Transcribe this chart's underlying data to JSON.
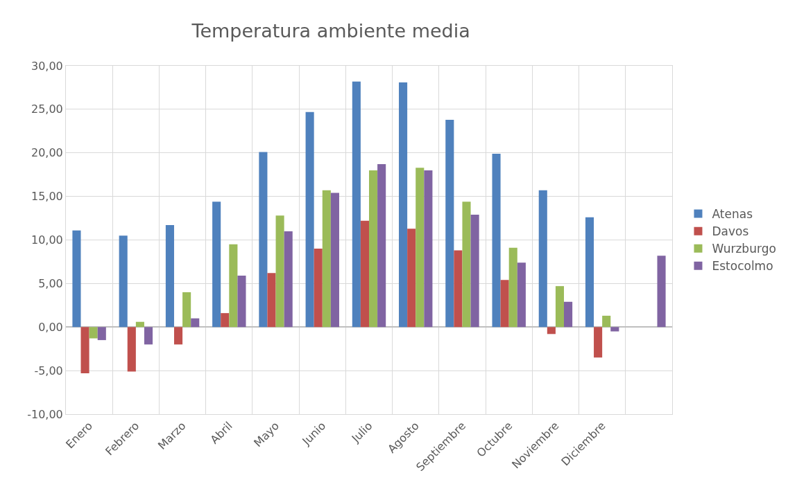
{
  "chart_data": {
    "type": "bar",
    "title": "Temperatura ambiente media",
    "categories": [
      "Enero",
      "Febrero",
      "Marzo",
      "Abril",
      "Mayo",
      "Junio",
      "Julio",
      "Agosto",
      "Septiembre",
      "Octubre",
      "Noviembre",
      "Diciembre",
      null
    ],
    "series": [
      {
        "name": "Atenas",
        "color": "#4f81bd",
        "values": [
          11.1,
          10.5,
          11.7,
          14.4,
          20.1,
          24.7,
          28.2,
          28.1,
          23.8,
          19.9,
          15.7,
          12.6,
          null
        ]
      },
      {
        "name": "Davos",
        "color": "#c0504d",
        "values": [
          -5.3,
          -5.1,
          -2.0,
          1.6,
          6.2,
          9.0,
          12.2,
          11.3,
          8.8,
          5.4,
          -0.8,
          -3.5,
          null
        ]
      },
      {
        "name": "Wurzburgo",
        "color": "#9bbb59",
        "values": [
          -1.3,
          0.6,
          4.0,
          9.5,
          12.8,
          15.7,
          18.0,
          18.3,
          14.4,
          9.1,
          4.7,
          1.3,
          null
        ]
      },
      {
        "name": "Estocolmo",
        "color": "#8064a2",
        "values": [
          -1.5,
          -2.0,
          1.0,
          5.9,
          11.0,
          15.4,
          18.7,
          18.0,
          12.9,
          7.4,
          2.9,
          -0.5,
          8.2
        ]
      }
    ],
    "ylim": [
      -10,
      30
    ],
    "yticks": [
      {
        "value": -10,
        "label": "-10,00"
      },
      {
        "value": -5,
        "label": "-5,00"
      },
      {
        "value": 0,
        "label": "0,00"
      },
      {
        "value": 5,
        "label": "5,00"
      },
      {
        "value": 10,
        "label": "10,00"
      },
      {
        "value": 15,
        "label": "15,00"
      },
      {
        "value": 20,
        "label": "20,00"
      },
      {
        "value": 25,
        "label": "25,00"
      },
      {
        "value": 30,
        "label": "30,00"
      }
    ],
    "grid": true,
    "legend": "right"
  }
}
